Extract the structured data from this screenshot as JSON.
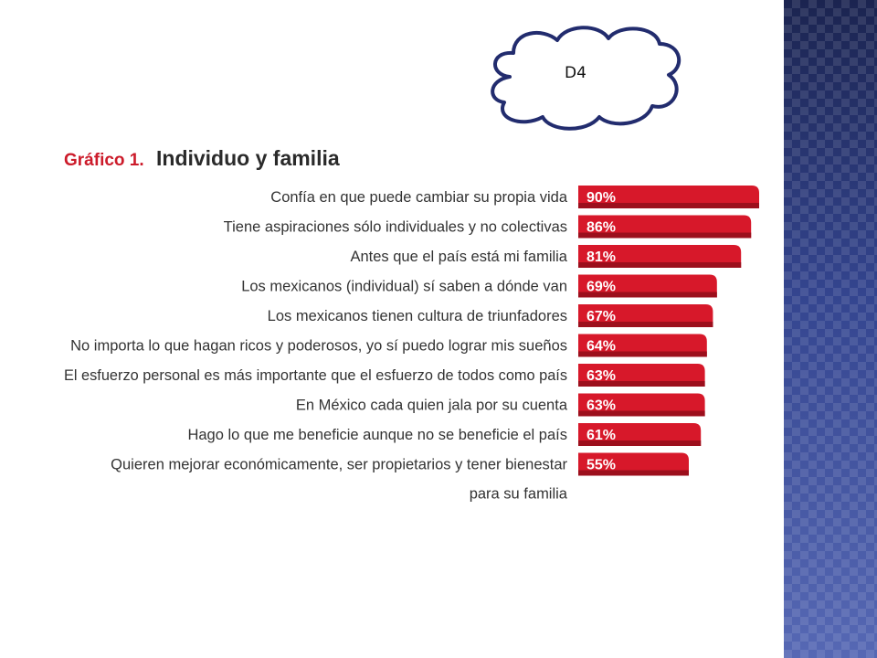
{
  "callout": {
    "label": "D4"
  },
  "chart_data": {
    "type": "bar",
    "orientation": "horizontal",
    "title_prefix": "Gráfico 1.",
    "title": "Individuo y familia",
    "categories": [
      "Confía en que puede cambiar su propia vida",
      "Tiene aspiraciones sólo individuales y no colectivas",
      "Antes que el país está mi familia",
      "Los mexicanos (individual) sí saben a dónde van",
      "Los mexicanos tienen cultura de triunfadores",
      "No importa lo que hagan ricos y poderosos, yo sí puedo lograr mis sueños",
      "El esfuerzo personal es más importante que el esfuerzo de todos como país",
      "En México cada quien jala por su cuenta",
      "Hago lo que me beneficie aunque no se beneficie el país",
      "Quieren mejorar económicamente, ser propietarios y tener bienestar para su familia"
    ],
    "values": [
      90,
      86,
      81,
      69,
      67,
      64,
      63,
      63,
      61,
      55
    ],
    "value_labels": [
      "90%",
      "86%",
      "81%",
      "69%",
      "67%",
      "64%",
      "63%",
      "63%",
      "61%",
      "55%"
    ],
    "bar_color": "#d7182a",
    "xlim": [
      0,
      100
    ],
    "grid": false,
    "legend": "none"
  }
}
